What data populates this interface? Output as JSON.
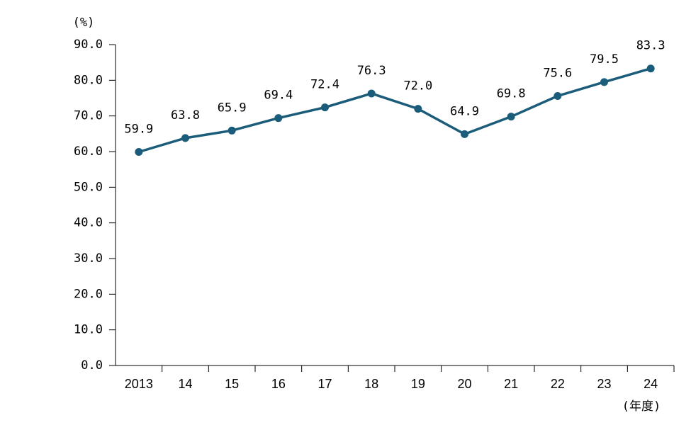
{
  "chart_data": {
    "type": "line",
    "y_unit_label": "(%)",
    "x_axis_label": "(年度)",
    "categories": [
      "2013",
      "14",
      "15",
      "16",
      "17",
      "18",
      "19",
      "20",
      "21",
      "22",
      "23",
      "24"
    ],
    "values": [
      59.9,
      63.8,
      65.9,
      69.4,
      72.4,
      76.3,
      72.0,
      64.9,
      69.8,
      75.6,
      79.5,
      83.3
    ],
    "value_labels": [
      "59.9",
      "63.8",
      "65.9",
      "69.4",
      "72.4",
      "76.3",
      "72.0",
      "64.9",
      "69.8",
      "75.6",
      "79.5",
      "83.3"
    ],
    "color": "#1b5c7a",
    "ylim": [
      0,
      90
    ],
    "yticks": [
      {
        "value": 0,
        "label": "0.0"
      },
      {
        "value": 10,
        "label": "10.0"
      },
      {
        "value": 20,
        "label": "20.0"
      },
      {
        "value": 30,
        "label": "30.0"
      },
      {
        "value": 40,
        "label": "40.0"
      },
      {
        "value": 50,
        "label": "50.0"
      },
      {
        "value": 60,
        "label": "60.0"
      },
      {
        "value": 70,
        "label": "70.0"
      },
      {
        "value": 80,
        "label": "80.0"
      },
      {
        "value": 90,
        "label": "90.0"
      }
    ],
    "grid": false
  }
}
